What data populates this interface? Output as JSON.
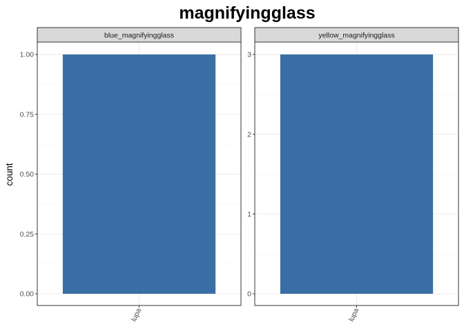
{
  "chart_data": {
    "type": "bar",
    "title": "magnifyingglass",
    "ylabel": "count",
    "xlabel": "",
    "bar_color": "#3A6EA5",
    "strip_color": "#D9D9D9",
    "grid": true,
    "facets": [
      {
        "name": "blue_magnifyingglass",
        "categories": [
          "lupa"
        ],
        "values": [
          1
        ],
        "ylim": [
          0,
          1
        ],
        "yticks": [
          0,
          0.25,
          0.5,
          0.75,
          1
        ],
        "ytick_labels": [
          "0.00",
          "0.25",
          "0.50",
          "0.75",
          "1.00"
        ]
      },
      {
        "name": "yellow_magnifyingglass",
        "categories": [
          "lupa"
        ],
        "values": [
          3
        ],
        "ylim": [
          0,
          3
        ],
        "yticks": [
          0,
          1,
          2,
          3
        ],
        "ytick_labels": [
          "0",
          "1",
          "2",
          "3"
        ]
      }
    ]
  }
}
